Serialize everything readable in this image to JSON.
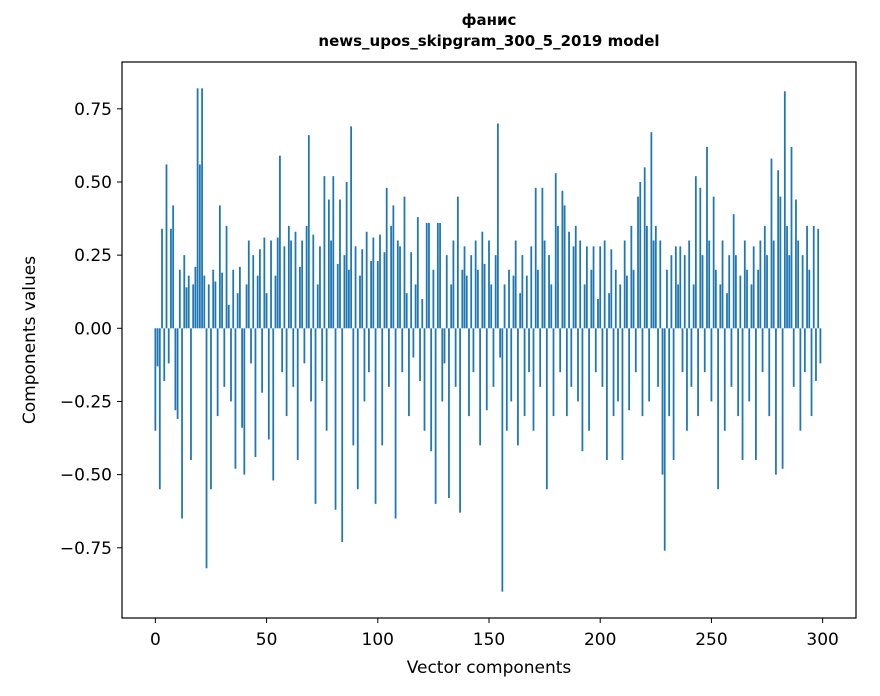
{
  "figure": {
    "title_line1": "фанис",
    "title_line2": "news_upos_skipgram_300_5_2019 model",
    "xlabel": "Vector components",
    "ylabel": "Components values"
  },
  "chart_data": {
    "type": "bar",
    "title": "фанис — news_upos_skipgram_300_5_2019 model",
    "xlabel": "Vector components",
    "ylabel": "Components values",
    "bar_color": "#1f77b4",
    "n_components": 300,
    "xlim": [
      -15,
      315
    ],
    "ylim": [
      -0.99,
      0.91
    ],
    "xticks": [
      0,
      50,
      100,
      150,
      200,
      250,
      300
    ],
    "xtick_labels": [
      "0",
      "50",
      "100",
      "150",
      "200",
      "250",
      "300"
    ],
    "yticks": [
      -0.75,
      -0.5,
      -0.25,
      0,
      0.25,
      0.5,
      0.75
    ],
    "ytick_labels": [
      "−0.75",
      "−0.50",
      "−0.25",
      "0.00",
      "0.25",
      "0.50",
      "0.75"
    ],
    "grid": false,
    "legend": null,
    "values": [
      -0.35,
      -0.13,
      -0.55,
      0.34,
      -0.18,
      0.56,
      -0.12,
      0.34,
      0.42,
      -0.28,
      -0.31,
      0.2,
      -0.65,
      0.25,
      0.14,
      0.18,
      -0.45,
      0.15,
      0.21,
      0.82,
      0.56,
      0.82,
      0.18,
      -0.82,
      0.15,
      -0.55,
      0.2,
      0.16,
      -0.3,
      0.42,
      0.19,
      -0.2,
      0.35,
      0.08,
      -0.25,
      0.2,
      -0.48,
      0.12,
      0.21,
      -0.34,
      -0.5,
      0.15,
      0.3,
      -0.12,
      0.25,
      -0.44,
      0.18,
      0.27,
      -0.22,
      0.31,
      0.12,
      -0.38,
      0.3,
      -0.52,
      0.18,
      0.31,
      0.59,
      -0.15,
      0.28,
      -0.3,
      0.35,
      0.3,
      -0.2,
      0.33,
      -0.45,
      0.21,
      0.3,
      -0.12,
      0.35,
      0.66,
      -0.25,
      0.32,
      -0.6,
      0.15,
      0.28,
      -0.18,
      0.52,
      -0.35,
      0.44,
      0.3,
      0.52,
      -0.62,
      0.22,
      0.44,
      -0.73,
      0.25,
      0.5,
      0.2,
      0.69,
      -0.4,
      0.28,
      -0.55,
      0.18,
      0.27,
      -0.25,
      0.33,
      -0.15,
      0.23,
      0.31,
      -0.6,
      0.23,
      0.32,
      -0.4,
      0.26,
      0.48,
      -0.2,
      0.35,
      0.42,
      -0.65,
      0.3,
      0.28,
      -0.15,
      0.45,
      0.12,
      -0.3,
      0.26,
      -0.1,
      0.15,
      0.38,
      -0.18,
      0.1,
      -0.35,
      0.36,
      0.36,
      -0.42,
      0.2,
      -0.6,
      0.36,
      0.36,
      -0.25,
      -0.12,
      0.25,
      -0.58,
      0.15,
      0.3,
      -0.2,
      0.45,
      -0.63,
      0.2,
      0.28,
      0.18,
      -0.3,
      0.25,
      -0.15,
      0.3,
      0.2,
      -0.4,
      0.33,
      0.22,
      -0.28,
      0.3,
      0.15,
      -0.2,
      0.25,
      0.7,
      -0.1,
      -0.9,
      0.15,
      -0.35,
      0.2,
      -0.25,
      0.18,
      0.3,
      -0.4,
      0.12,
      0.25,
      -0.3,
      0.18,
      -0.15,
      0.28,
      -0.35,
      0.48,
      0.2,
      -0.2,
      0.48,
      0.3,
      -0.55,
      0.25,
      0.15,
      -0.3,
      0.53,
      0.35,
      -0.15,
      0.47,
      0.42,
      -0.3,
      0.33,
      -0.2,
      0.28,
      0.35,
      -0.25,
      0.3,
      -0.42,
      0.15,
      0.28,
      -0.35,
      0.2,
      0.28,
      -0.15,
      0.1,
      0.28,
      -0.2,
      0.3,
      -0.45,
      0.12,
      0.27,
      -0.3,
      0.2,
      -0.25,
      0.15,
      -0.45,
      0.3,
      0.18,
      -0.28,
      0.35,
      0.2,
      -0.15,
      0.45,
      0.5,
      -0.3,
      0.55,
      0.35,
      -0.25,
      0.67,
      0.3,
      0.35,
      -0.2,
      0.3,
      -0.5,
      -0.76,
      0.2,
      -0.3,
      0.25,
      -0.45,
      0.28,
      0.15,
      0.28,
      -0.15,
      0.25,
      -0.35,
      0.3,
      -0.2,
      0.15,
      0.52,
      -0.3,
      0.48,
      0.25,
      -0.15,
      0.62,
      0.3,
      -0.25,
      0.45,
      0.2,
      -0.55,
      0.15,
      0.3,
      -0.35,
      0.12,
      0.25,
      -0.2,
      0.39,
      0.25,
      -0.3,
      0.18,
      -0.45,
      0.3,
      0.2,
      -0.25,
      0.15,
      0.28,
      -0.45,
      0.2,
      0.3,
      -0.15,
      0.35,
      0.25,
      -0.3,
      0.58,
      0.3,
      -0.5,
      0.54,
      0.45,
      -0.48,
      0.81,
      0.35,
      0.25,
      0.62,
      -0.2,
      0.44,
      0.3,
      -0.35,
      0.25,
      -0.15,
      0.35,
      0.2,
      -0.3,
      0.35,
      -0.18,
      0.34,
      -0.12
    ]
  }
}
